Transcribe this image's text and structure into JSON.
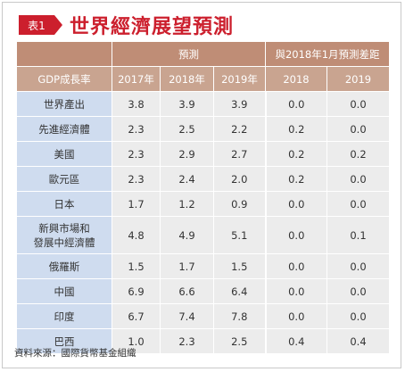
{
  "header": {
    "badge": "表1",
    "title": "世界經濟展望預測"
  },
  "table": {
    "group_forecast": "預測",
    "group_diff": "與2018年1月預測差距",
    "col_label": "GDP成長率",
    "columns": [
      "2017年",
      "2018年",
      "2019年",
      "2018",
      "2019"
    ],
    "rows": [
      {
        "label_lines": [
          "世界產出"
        ],
        "values": [
          "3.8",
          "3.9",
          "3.9",
          "0.0",
          "0.0"
        ]
      },
      {
        "label_lines": [
          "先進經濟體"
        ],
        "values": [
          "2.3",
          "2.5",
          "2.2",
          "0.2",
          "0.0"
        ]
      },
      {
        "label_lines": [
          "美國"
        ],
        "values": [
          "2.3",
          "2.9",
          "2.7",
          "0.2",
          "0.2"
        ]
      },
      {
        "label_lines": [
          "歐元區"
        ],
        "values": [
          "2.3",
          "2.4",
          "2.0",
          "0.2",
          "0.0"
        ]
      },
      {
        "label_lines": [
          "日本"
        ],
        "values": [
          "1.7",
          "1.2",
          "0.9",
          "0.0",
          "0.0"
        ]
      },
      {
        "label_lines": [
          "新興市場和",
          "發展中經濟體"
        ],
        "values": [
          "4.8",
          "4.9",
          "5.1",
          "0.0",
          "0.1"
        ]
      },
      {
        "label_lines": [
          "俄羅斯"
        ],
        "values": [
          "1.5",
          "1.7",
          "1.5",
          "0.0",
          "0.0"
        ]
      },
      {
        "label_lines": [
          "中國"
        ],
        "values": [
          "6.9",
          "6.6",
          "6.4",
          "0.0",
          "0.0"
        ]
      },
      {
        "label_lines": [
          "印度"
        ],
        "values": [
          "6.7",
          "7.4",
          "7.8",
          "0.0",
          "0.0"
        ]
      },
      {
        "label_lines": [
          "巴西"
        ],
        "values": [
          "1.0",
          "2.3",
          "2.5",
          "0.4",
          "0.4"
        ]
      }
    ]
  },
  "source_note": "資料來源：國際貨幣基金組織",
  "colors": {
    "accent": "#cc1f2d",
    "header_dark": "#bf8d76",
    "header_light": "#c9a490",
    "label_cell": "#cfdcef",
    "value_cell": "#ececec"
  }
}
